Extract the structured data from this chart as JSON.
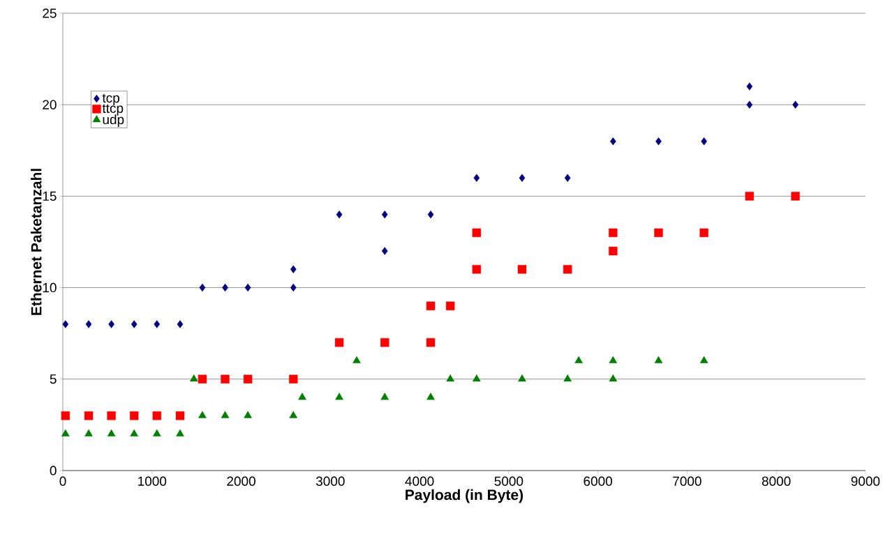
{
  "chart_data": {
    "type": "scatter",
    "xlabel": "Payload (in Byte)",
    "ylabel": "Ethernet Paketanzahl",
    "xlim": [
      0,
      9000
    ],
    "xticks": [
      0,
      1000,
      2000,
      3000,
      4000,
      5000,
      6000,
      7000,
      8000,
      9000
    ],
    "ylim": [
      0,
      25
    ],
    "yticks": [
      0,
      5,
      10,
      15,
      20,
      25
    ],
    "grid": "y",
    "legend": "top left",
    "series": [
      {
        "name": "tcp",
        "color": "#000080",
        "marker": "diamond",
        "x": [
          30,
          290,
          545,
          800,
          1055,
          1315,
          1565,
          1820,
          2075,
          2585,
          2585,
          3100,
          3610,
          3610,
          4125,
          4640,
          5150,
          5660,
          6170,
          6680,
          7190,
          7700,
          7700,
          8215
        ],
        "values": [
          8,
          8,
          8,
          8,
          8,
          8,
          10,
          10,
          10,
          10,
          11,
          14,
          14,
          12,
          14,
          16,
          16,
          16,
          18,
          18,
          18,
          20,
          21,
          20
        ]
      },
      {
        "name": "ttcp",
        "color": "#ff0000",
        "marker": "square",
        "x": [
          30,
          290,
          545,
          800,
          1055,
          1315,
          1565,
          1820,
          2075,
          2585,
          3100,
          3610,
          4125,
          4125,
          4345,
          4640,
          4640,
          5150,
          5660,
          6170,
          6170,
          6680,
          7190,
          7700,
          8215
        ],
        "values": [
          3,
          3,
          3,
          3,
          3,
          3,
          5,
          5,
          5,
          5,
          7,
          7,
          9,
          7,
          9,
          13,
          11,
          11,
          11,
          13,
          12,
          13,
          13,
          15,
          15
        ]
      },
      {
        "name": "udp",
        "color": "#008000",
        "marker": "triangle",
        "x": [
          30,
          290,
          545,
          800,
          1055,
          1315,
          1470,
          1565,
          1820,
          2075,
          2585,
          2685,
          3100,
          3295,
          3610,
          4125,
          4345,
          4640,
          5150,
          5660,
          5785,
          6170,
          6170,
          6680,
          7190
        ],
        "values": [
          2,
          2,
          2,
          2,
          2,
          2,
          5,
          3,
          3,
          3,
          3,
          4,
          4,
          6,
          4,
          4,
          5,
          5,
          5,
          5,
          6,
          6,
          5,
          6,
          6
        ]
      }
    ]
  }
}
